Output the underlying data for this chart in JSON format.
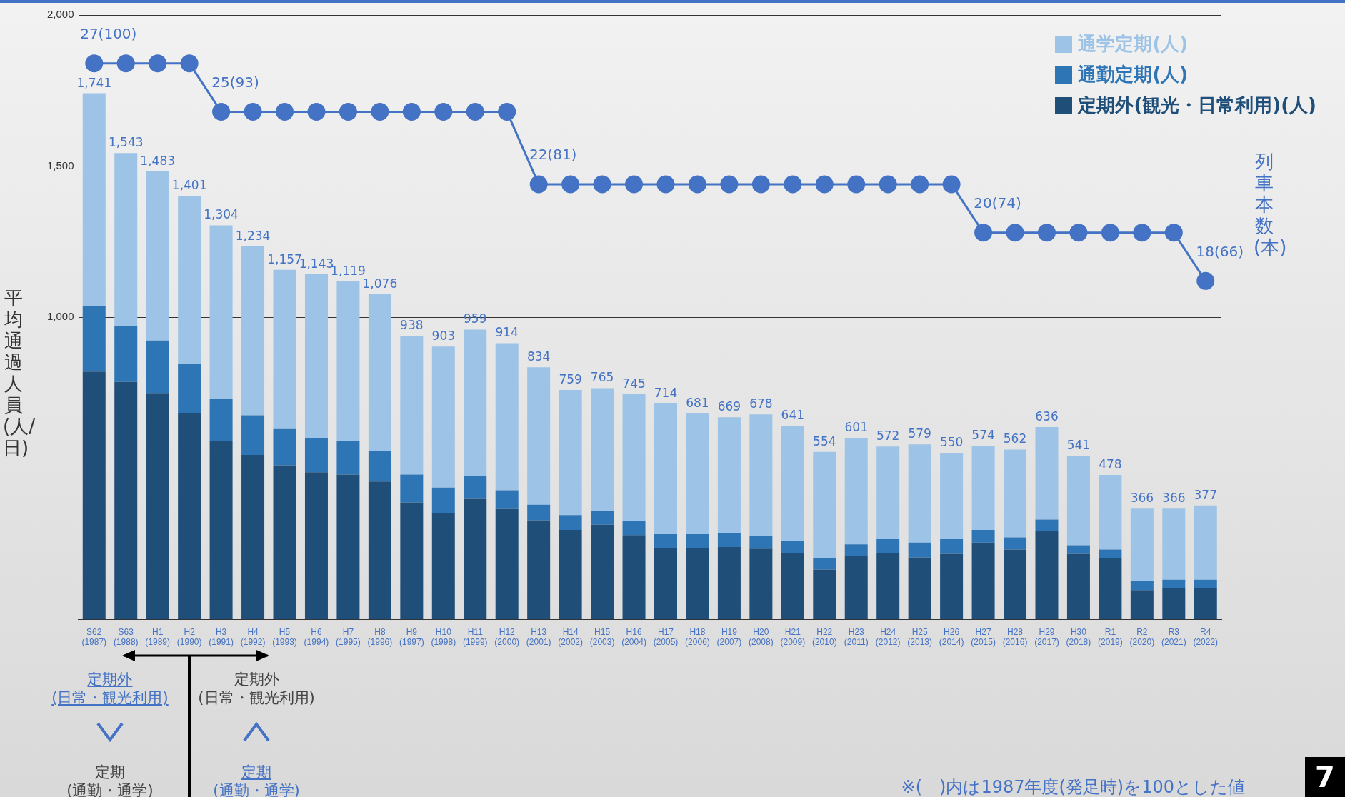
{
  "chart_data": {
    "type": "bar",
    "stacked": true,
    "ylabel": "平均通過人員(人/日)",
    "y2label": "列車本数(本)",
    "categories": [
      "S62\n(1987)",
      "S63\n(1988)",
      "H1\n(1989)",
      "H2\n(1990)",
      "H3\n(1991)",
      "H4\n(1992)",
      "H5\n(1993)",
      "H6\n(1994)",
      "H7\n(1995)",
      "H8\n(1996)",
      "H9\n(1997)",
      "H10\n(1998)",
      "H11\n(1999)",
      "H12\n(2000)",
      "H13\n(2001)",
      "H14\n(2002)",
      "H15\n(2003)",
      "H16\n(2004)",
      "H17\n(2005)",
      "H18\n(2006)",
      "H19\n(2007)",
      "H20\n(2008)",
      "H21\n(2009)",
      "H22\n(2010)",
      "H23\n(2011)",
      "H24\n(2012)",
      "H25\n(2013)",
      "H26\n(2014)",
      "H27\n(2015)",
      "H28\n(2016)",
      "H29\n(2017)",
      "H30\n(2018)",
      "R1\n(2019)",
      "R2\n(2020)",
      "R3\n(2021)",
      "R4\n(2022)"
    ],
    "series": [
      {
        "name": "定期外(観光・日常利用)(人)",
        "color": "#1f4e79",
        "values": [
          820,
          786,
          749,
          681,
          590,
          544,
          510,
          487,
          479,
          456,
          387,
          350,
          399,
          365,
          328,
          296,
          313,
          279,
          236,
          236,
          239,
          234,
          219,
          165,
          211,
          219,
          205,
          217,
          254,
          231,
          293,
          217,
          202,
          97,
          103,
          103
        ]
      },
      {
        "name": "通勤定期(人)",
        "color": "#2e75b6",
        "values": [
          217,
          185,
          174,
          165,
          139,
          131,
          120,
          114,
          111,
          102,
          92,
          86,
          74,
          62,
          51,
          49,
          46,
          46,
          46,
          46,
          46,
          42,
          40,
          37,
          37,
          46,
          49,
          48,
          42,
          40,
          37,
          28,
          29,
          31,
          28,
          28
        ]
      },
      {
        "name": "通学定期(人)",
        "color": "#9dc3e6",
        "values": [
          704,
          572,
          560,
          555,
          575,
          559,
          527,
          542,
          529,
          518,
          459,
          467,
          486,
          487,
          455,
          414,
          406,
          420,
          432,
          399,
          384,
          402,
          382,
          352,
          353,
          307,
          325,
          285,
          278,
          291,
          306,
          296,
          247,
          238,
          235,
          246
        ]
      },
      {
        "type": "line",
        "axis": "y2",
        "color": "#4472c4",
        "marker": "circle",
        "values": [
          27,
          27,
          27,
          27,
          25,
          25,
          25,
          25,
          25,
          25,
          25,
          25,
          25,
          25,
          22,
          22,
          22,
          22,
          22,
          22,
          22,
          22,
          22,
          22,
          22,
          22,
          22,
          22,
          20,
          20,
          20,
          20,
          20,
          20,
          20,
          18
        ],
        "value_labels": [
          "27(100)",
          null,
          null,
          null,
          "25(93)",
          null,
          null,
          null,
          null,
          null,
          null,
          null,
          null,
          null,
          "22(81)",
          null,
          null,
          null,
          null,
          null,
          null,
          null,
          null,
          null,
          null,
          null,
          null,
          null,
          "20(74)",
          null,
          null,
          null,
          null,
          null,
          null,
          "18(66)"
        ]
      }
    ],
    "totals": [
      "1,741",
      "1,543",
      "1,483",
      "1,401",
      "1,304",
      "1,234",
      "1,157",
      "1,143",
      "1,119",
      "1,076",
      "938",
      "903",
      "959",
      "914",
      "834",
      "759",
      "765",
      "745",
      "714",
      "681",
      "669",
      "678",
      "641",
      "554",
      "601",
      "572",
      "579",
      "550",
      "574",
      "562",
      "636",
      "541",
      "478",
      "366",
      "366",
      "377"
    ],
    "ylim": [
      0,
      2000
    ],
    "yticks": [
      {
        "value": 1000,
        "label": "1,000"
      },
      {
        "value": 1500,
        "label": "1,500"
      },
      {
        "value": 2000,
        "label": "2,000"
      }
    ],
    "y2lim": [
      4,
      29
    ],
    "grid": "y",
    "legend": "top right",
    "annotations": [
      "定期外\n(日常・観光利用)",
      "定期\n(通勤・通学)",
      "定期外\n(日常・観光利用)",
      "定期\n(通勤・通学)",
      "※(　)内は1987年度(発足時)を100とした値",
      "7"
    ]
  }
}
